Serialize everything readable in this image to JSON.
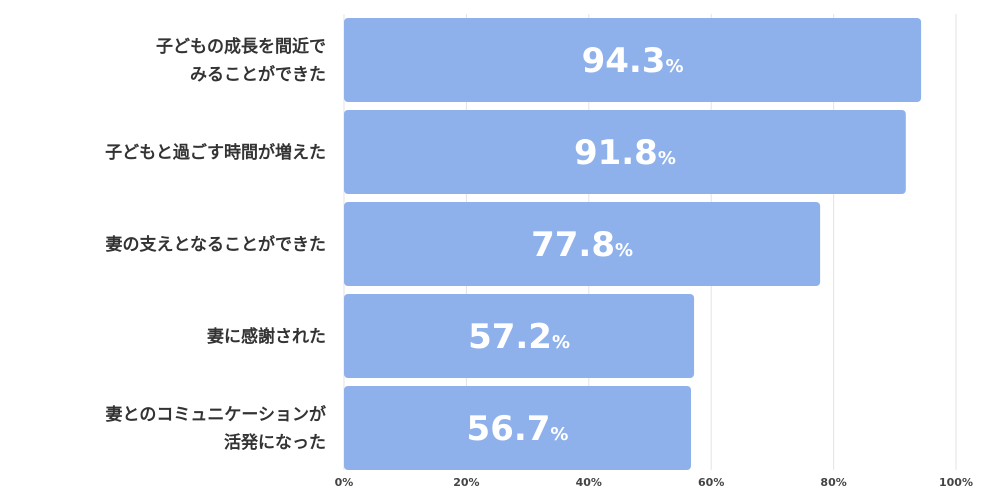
{
  "chart_data": {
    "type": "bar",
    "orientation": "horizontal",
    "categories": [
      "子どもの成長を間近で\nみることができた",
      "子どもと過ごす時間が増えた",
      "妻の支えとなることができた",
      "妻に感謝された",
      "妻とのコミュニケーションが\n活発になった"
    ],
    "values": [
      94.3,
      91.8,
      77.8,
      57.2,
      56.7
    ],
    "value_unit": "%",
    "xlim": [
      0,
      100
    ],
    "xticks": [
      0,
      20,
      40,
      60,
      80,
      100
    ],
    "xtick_labels": [
      "0%",
      "20%",
      "40%",
      "60%",
      "80%",
      "100%"
    ],
    "grid": true,
    "legend": "none",
    "colors": {
      "bar": "#8fb1eb",
      "bar_label": "#ffffff",
      "grid": "#e3e3e3",
      "category_text": "#333333",
      "tick_text": "#444444"
    }
  }
}
